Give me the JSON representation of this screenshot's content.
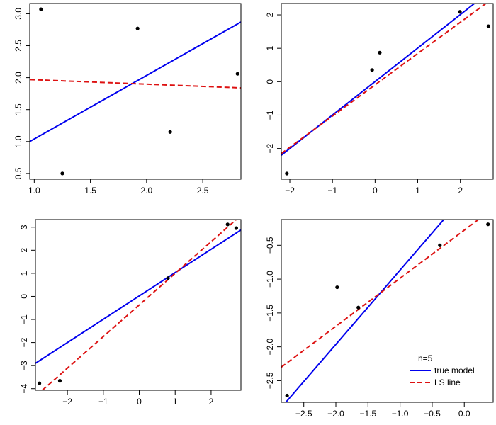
{
  "chart_data": [
    {
      "type": "scatter",
      "panel": "top-left",
      "xlim": [
        0.96,
        2.84
      ],
      "ylim": [
        0.41,
        3.16
      ],
      "xticks": [
        1.0,
        1.5,
        2.0,
        2.5
      ],
      "xtick_labels": [
        "1.0",
        "1.5",
        "2.0",
        "2.5"
      ],
      "yticks": [
        0.5,
        1.0,
        1.5,
        2.0,
        2.5,
        3.0
      ],
      "ytick_labels": [
        "0.5",
        "1.0",
        "1.5",
        "2.0",
        "2.5",
        "3.0"
      ],
      "points": {
        "x": [
          1.06,
          1.25,
          1.92,
          2.21,
          2.81
        ],
        "y": [
          3.07,
          0.5,
          2.77,
          1.15,
          2.06
        ]
      },
      "true_line": {
        "x": [
          0.96,
          2.84
        ],
        "y": [
          1.0,
          2.87
        ]
      },
      "ls_line": {
        "x": [
          0.96,
          2.84
        ],
        "y": [
          1.97,
          1.84
        ]
      },
      "true_color": "#0000ee",
      "ls_color": "#dd1111"
    },
    {
      "type": "scatter",
      "panel": "top-right",
      "xlim": [
        -2.2,
        2.77
      ],
      "ylim": [
        -2.92,
        2.34
      ],
      "xticks": [
        -2,
        -1,
        0,
        1,
        2
      ],
      "xtick_labels": [
        "−2",
        "−1",
        "0",
        "1",
        "2"
      ],
      "yticks": [
        -2,
        -1,
        0,
        1,
        2
      ],
      "ytick_labels": [
        "−2",
        "−1",
        "0",
        "1",
        "2"
      ],
      "points": {
        "x": [
          -2.07,
          -0.07,
          0.11,
          1.99,
          2.66
        ],
        "y": [
          -2.75,
          0.35,
          0.87,
          2.09,
          1.66
        ]
      },
      "true_line": {
        "x": [
          -2.2,
          2.33
        ],
        "y": [
          -2.2,
          2.34
        ]
      },
      "ls_line": {
        "x": [
          -2.2,
          2.6
        ],
        "y": [
          -2.15,
          2.34
        ]
      },
      "true_color": "#0000ee",
      "ls_color": "#dd1111"
    },
    {
      "type": "scatter",
      "panel": "bottom-left",
      "xlim": [
        -2.89,
        2.83
      ],
      "ylim": [
        -4.07,
        3.33
      ],
      "xticks": [
        -2,
        -1,
        0,
        1,
        2
      ],
      "xtick_labels": [
        "−2",
        "−1",
        "0",
        "1",
        "2"
      ],
      "yticks": [
        -4,
        -3,
        -2,
        -1,
        0,
        1,
        2,
        3
      ],
      "ytick_labels": [
        "−4",
        "−3",
        "−2",
        "−1",
        "0",
        "1",
        "2",
        "3"
      ],
      "points": {
        "x": [
          -2.78,
          -2.21,
          0.8,
          2.46,
          2.7
        ],
        "y": [
          -3.77,
          -3.66,
          0.79,
          3.12,
          2.96
        ]
      },
      "true_line": {
        "x": [
          -2.89,
          2.83
        ],
        "y": [
          -2.9,
          2.88
        ]
      },
      "ls_line": {
        "x": [
          -2.7,
          2.7
        ],
        "y": [
          -4.07,
          3.33
        ]
      },
      "true_color": "#0000ee",
      "ls_color": "#dd1111"
    },
    {
      "type": "scatter",
      "panel": "bottom-right",
      "xlim": [
        -2.85,
        0.45
      ],
      "ylim": [
        -2.82,
        -0.12
      ],
      "xticks": [
        -2.5,
        -2.0,
        -1.5,
        -1.0,
        -0.5,
        0.0
      ],
      "xtick_labels": [
        "−2.5",
        "−2.0",
        "−1.5",
        "−1.0",
        "−0.5",
        "0.0"
      ],
      "yticks": [
        -2.5,
        -2.0,
        -1.5,
        -1.0,
        -0.5
      ],
      "ytick_labels": [
        "−2.5",
        "−2.0",
        "−1.5",
        "−1.0",
        "−0.5"
      ],
      "points": {
        "x": [
          -2.76,
          -1.98,
          -1.65,
          -0.38,
          0.37
        ],
        "y": [
          -2.72,
          -1.12,
          -1.42,
          -0.5,
          -0.19
        ]
      },
      "true_line": {
        "x": [
          -2.78,
          -0.32
        ],
        "y": [
          -2.82,
          -0.12
        ]
      },
      "ls_line": {
        "x": [
          -2.85,
          0.22
        ],
        "y": [
          -2.3,
          -0.12
        ]
      },
      "true_color": "#0000ee",
      "ls_color": "#dd1111",
      "legend": {
        "placement": "bottom-right",
        "title": "n=5",
        "entries": [
          {
            "label": "true model",
            "color": "#0000ee",
            "style": "solid"
          },
          {
            "label": "LS line",
            "color": "#dd1111",
            "style": "dashed"
          }
        ]
      }
    }
  ]
}
